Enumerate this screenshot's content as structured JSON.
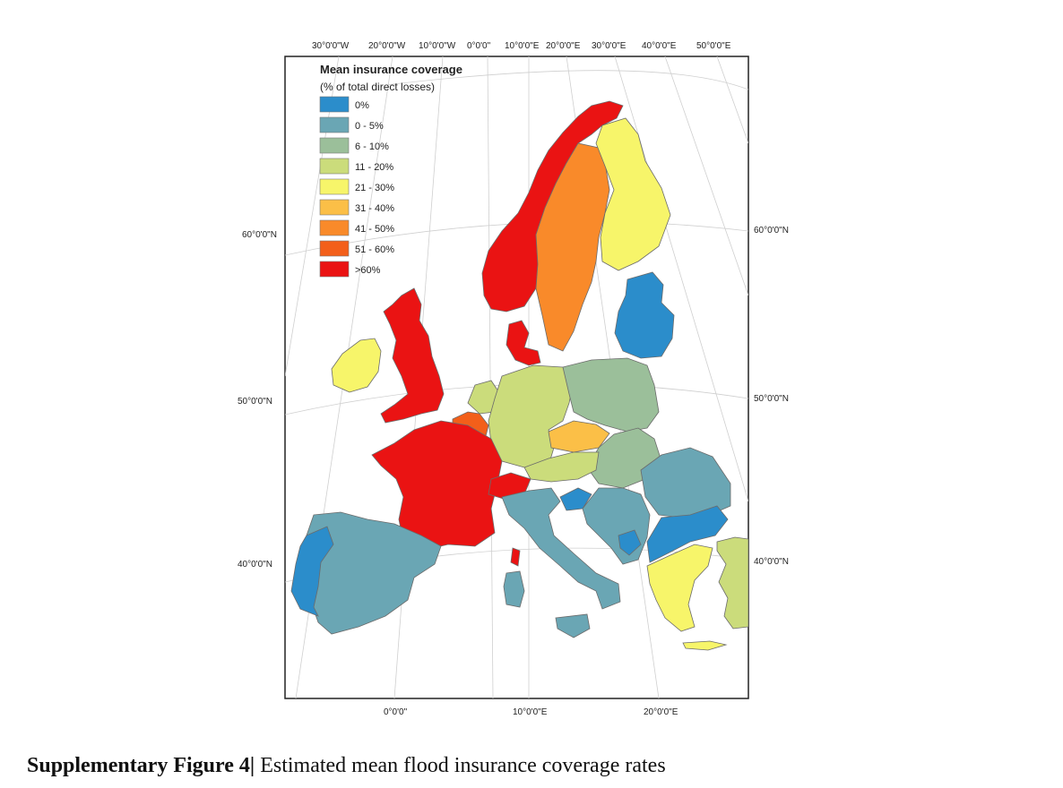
{
  "map": {
    "top_ticks": [
      "30°0'0\"W",
      "20°0'0\"W",
      "10°0'0\"W",
      "0°0'0\"",
      "10°0'0\"E",
      "20°0'0\"E",
      "30°0'0\"E",
      "40°0'0\"E",
      "50°0'0\"E"
    ],
    "bottom_ticks": [
      "0°0'0\"",
      "10°0'0\"E",
      "20°0'0\"E"
    ],
    "left_ticks": [
      "60°0'0\"N",
      "50°0'0\"N",
      "40°0'0\"N"
    ],
    "right_ticks": [
      "60°0'0\"N",
      "50°0'0\"N",
      "40°0'0\"N"
    ],
    "legend": {
      "title": "Mean insurance coverage",
      "subtitle": "(% of total direct losses)",
      "classes": [
        {
          "label": "0%",
          "color": "#2b8dcb"
        },
        {
          "label": "0 - 5%",
          "color": "#6aa6b4"
        },
        {
          "label": "6 - 10%",
          "color": "#9bbf9a"
        },
        {
          "label": "11 - 20%",
          "color": "#cbdc7b"
        },
        {
          "label": "21 - 30%",
          "color": "#f7f56a"
        },
        {
          "label": "31 - 40%",
          "color": "#fbbf47"
        },
        {
          "label": "41 - 50%",
          "color": "#f98a2a"
        },
        {
          "label": "51 - 60%",
          "color": "#f35f1a"
        },
        {
          "label": ">60%",
          "color": "#ea1313"
        }
      ]
    },
    "regions": {
      "norway": 8,
      "sweden": 6,
      "finland": 4,
      "baltics": 0,
      "denmark": 8,
      "uk": 8,
      "ireland": 4,
      "netherlands": 3,
      "benelux": 7,
      "germany": 3,
      "poland": 2,
      "czechia": 5,
      "austria": 3,
      "slovakia_hungary": 2,
      "france": 8,
      "switzerland": 8,
      "corsica": 8,
      "iberia": 1,
      "portugal": 0,
      "italy": 1,
      "sardinia": 1,
      "slovenia": 0,
      "balkans": 1,
      "bosnia": 0,
      "romania": 1,
      "bulgaria": 0,
      "greece": 4,
      "crete": 4,
      "turkey": 3
    }
  },
  "caption": {
    "label": "Supplementary Figure 4|",
    "text": " Estimated mean flood insurance coverage rates"
  }
}
